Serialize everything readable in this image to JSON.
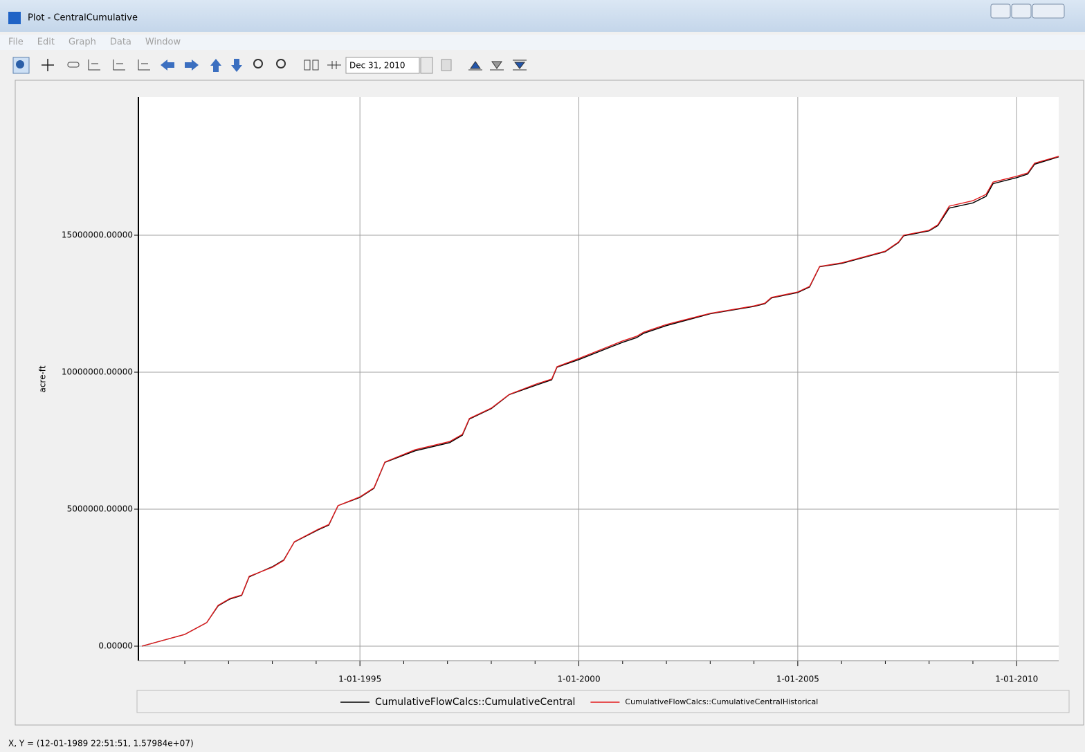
{
  "window": {
    "title": "Plot - CentralCumulative"
  },
  "menu": [
    "File",
    "Edit",
    "Graph",
    "Data",
    "Window"
  ],
  "toolbar": {
    "date": "Dec 31, 2010"
  },
  "status": "X, Y = (12-01-1989 22:51:51, 1.57984e+07)",
  "chart_data": {
    "type": "line",
    "ylabel": "acre-ft",
    "x": [
      1990.02,
      1991.0,
      1991.5,
      1991.76,
      1992.03,
      1992.3,
      1992.47,
      1993.0,
      1993.26,
      1993.5,
      1994.05,
      1994.29,
      1994.5,
      1995.0,
      1995.32,
      1995.57,
      1996.26,
      1997.05,
      1997.34,
      1997.5,
      1998.0,
      1998.41,
      1999.03,
      1999.38,
      1999.5,
      2000.0,
      2001.0,
      2001.32,
      2001.48,
      2002.0,
      2003.0,
      2004.0,
      2004.25,
      2004.4,
      2005.0,
      2005.27,
      2005.5,
      2006.0,
      2007.0,
      2007.3,
      2007.42,
      2008.0,
      2008.2,
      2008.46,
      2009.0,
      2009.3,
      2009.46,
      2010.0,
      2010.25,
      2010.41,
      2010.96
    ],
    "series": [
      {
        "name": "CumulativeFlowCalcs::CumulativeCentral",
        "color": "#000000",
        "values": [
          0,
          430000,
          860000,
          1470000,
          1720000,
          1850000,
          2530000,
          2900000,
          3150000,
          3800000,
          4250000,
          4420000,
          5130000,
          5430000,
          5760000,
          6710000,
          7130000,
          7430000,
          7700000,
          8290000,
          8670000,
          9180000,
          9530000,
          9720000,
          10180000,
          10460000,
          11090000,
          11260000,
          11420000,
          11700000,
          12130000,
          12400000,
          12500000,
          12710000,
          12910000,
          13110000,
          13850000,
          13970000,
          14400000,
          14730000,
          14980000,
          15160000,
          15350000,
          15990000,
          16180000,
          16420000,
          16880000,
          17100000,
          17230000,
          17590000,
          17860000
        ]
      },
      {
        "name": "CumulativeFlowCalcs::CumulativeCentralHistorical",
        "color": "#e31a1c",
        "values": [
          0,
          430000,
          860000,
          1490000,
          1740000,
          1870000,
          2550000,
          2880000,
          3130000,
          3810000,
          4270000,
          4440000,
          5130000,
          5450000,
          5780000,
          6720000,
          7170000,
          7470000,
          7730000,
          8310000,
          8690000,
          9190000,
          9570000,
          9750000,
          10200000,
          10500000,
          11140000,
          11310000,
          11460000,
          11740000,
          12150000,
          12420000,
          12520000,
          12730000,
          12930000,
          13130000,
          13860000,
          13990000,
          14420000,
          14750000,
          15000000,
          15180000,
          15380000,
          16060000,
          16260000,
          16490000,
          16940000,
          17150000,
          17270000,
          17630000,
          17880000
        ]
      }
    ],
    "xlim": [
      1989.94,
      2010.96
    ],
    "xticks": [
      {
        "value": 1995,
        "label": "1-01-1995"
      },
      {
        "value": 2000,
        "label": "1-01-2000"
      },
      {
        "value": 2005,
        "label": "1-01-2005"
      },
      {
        "value": 2010,
        "label": "1-01-2010"
      }
    ],
    "minor_xticks": [
      1991,
      1992,
      1993,
      1994,
      1996,
      1997,
      1998,
      1999,
      2001,
      2002,
      2003,
      2004,
      2006,
      2007,
      2008,
      2009
    ],
    "ylim": [
      -530000,
      20050000
    ],
    "yticks": [
      {
        "value": 0,
        "label": "0.00000"
      },
      {
        "value": 5000000,
        "label": "5000000.00000"
      },
      {
        "value": 10000000,
        "label": "10000000.00000"
      },
      {
        "value": 15000000,
        "label": "15000000.00000"
      }
    ],
    "grid": true
  }
}
